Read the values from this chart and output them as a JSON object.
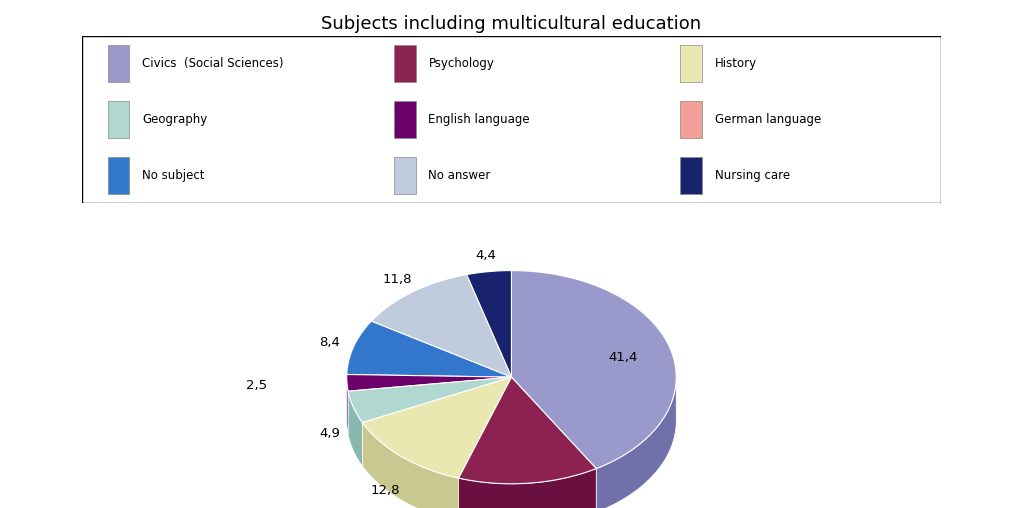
{
  "title": "Subjects including multicultural education",
  "labels": [
    "Civics  (Social Sciences)",
    "Psychology",
    "History",
    "Geography",
    "English language",
    "German language",
    "No subject",
    "No answer",
    "Nursing care"
  ],
  "values": [
    41.4,
    13.8,
    12.8,
    4.9,
    2.5,
    0.0,
    8.4,
    11.8,
    4.4
  ],
  "colors_top": [
    "#9999CC",
    "#8B2252",
    "#E8E8B0",
    "#B0D8D0",
    "#6B006B",
    "#F0A098",
    "#3377CC",
    "#C0CCDD",
    "#1A2370"
  ],
  "colors_side": [
    "#7070AA",
    "#6A1040",
    "#C8C890",
    "#88B8B0",
    "#4A0050",
    "#C08070",
    "#2255AA",
    "#9AAABB",
    "#0A1350"
  ],
  "startangle": 90,
  "counterclock": false,
  "depth": 0.12,
  "background_color": "#FFFFFF",
  "legend_labels": [
    "Civics  (Social Sciences)",
    "Psychology",
    "History",
    "Geography",
    "English language",
    "German language",
    "No subject",
    "No answer",
    "Nursing care"
  ],
  "legend_colors": [
    "#9999CC",
    "#8B2252",
    "#E8E8B0",
    "#B0D8D0",
    "#6B006B",
    "#F0A098",
    "#3377CC",
    "#C0CCDD",
    "#1A2370"
  ]
}
